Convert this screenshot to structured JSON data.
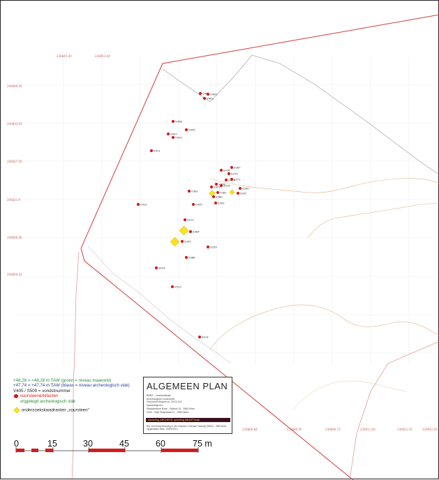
{
  "map": {
    "coordinate_labels": {
      "top": [
        "236845.00",
        "236851.64"
      ],
      "left": [
        "206848.94",
        "206833.04",
        "206827.50",
        "206821.9",
        "206806.00",
        "206800.42"
      ],
      "bottom": [
        "236866.84",
        "236880.00",
        "236896.73",
        "236911.00",
        "236921.03",
        "236941.00"
      ]
    },
    "finds": [
      {
        "id": "V404"
      },
      {
        "id": "V400"
      },
      {
        "id": "V402"
      },
      {
        "id": "V408"
      },
      {
        "id": "V405"
      },
      {
        "id": "V407"
      },
      {
        "id": "V410"
      },
      {
        "id": "V411"
      },
      {
        "id": "S376"
      },
      {
        "id": "S387"
      },
      {
        "id": "S370"
      },
      {
        "id": "S374"
      },
      {
        "id": "S371"
      },
      {
        "id": "V377"
      },
      {
        "id": "V378"
      },
      {
        "id": "S374"
      },
      {
        "id": "V381"
      },
      {
        "id": "V361"
      },
      {
        "id": "V380"
      },
      {
        "id": "S390"
      },
      {
        "id": "S351"
      },
      {
        "id": "V412"
      },
      {
        "id": "V435"
      },
      {
        "id": "S392"
      },
      {
        "id": "S415"
      },
      {
        "id": "S384"
      },
      {
        "id": "S350"
      },
      {
        "id": "S359"
      },
      {
        "id": "S386"
      },
      {
        "id": "S424"
      },
      {
        "id": "V513"
      },
      {
        "id": "S414"
      }
    ],
    "squares": 4
  },
  "legend": {
    "line1": "+48,28 = +48,28 m TAW (groen = niveau maaiveld)",
    "line2": "+47,74 = +47,74 m TAW (blauw = niveau archeologisch vlak)",
    "line3": "V405  / S509 = vondstnummer",
    "line4": "vuursteenartefacten",
    "line5": "vrijgelegd archeologisch vlak",
    "line6": "onderzoekskwadranten „vuursteen\"",
    "colors": {
      "green": "#2e8b3a",
      "blue": "#2a3f9a",
      "red": "#d21c1c",
      "yellow": "#ffe21f"
    }
  },
  "titleblock": {
    "title": "ALGEMEEN PLAN",
    "sub_lines": [
      "BREE - Hoebenstraat",
      "Archeologisch onderzoek",
      "Omvormd Erfgoed ts. 2013-419",
      "opdrachtgever",
      "Stadsbestuur Bree - Vrijthof 10 - 3960 Bree",
      "VOB - Vrije Tekenklaal 11 - 3960 Bree"
    ],
    "band": "uitvoering: ARCHEOS, opmeting MAAST bvba",
    "foot_lines": [
      "Rik. vd Kerckenhuizing & Jan Claesen, Grieuwe Fiziringt (VBW) - 3960 Bree",
      "opgemaakt: Bree, 20/03/2014"
    ]
  },
  "scale_bar": {
    "labels": [
      "0",
      "15",
      "30",
      "45",
      "60",
      "75 m"
    ]
  }
}
